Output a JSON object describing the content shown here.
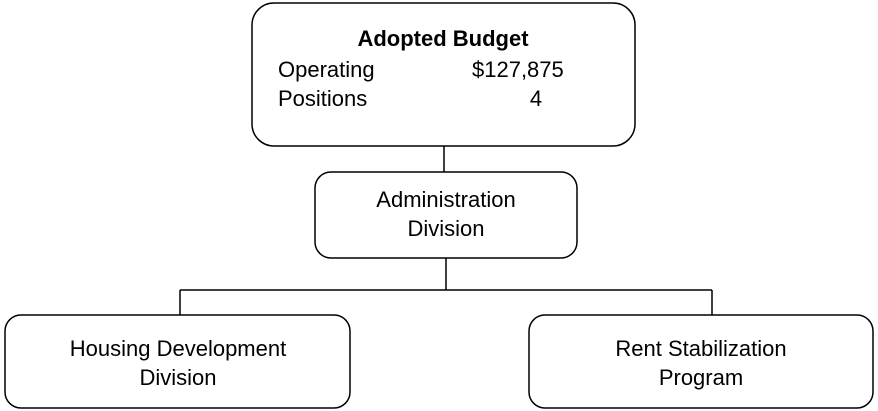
{
  "budget": {
    "title": "Adopted Budget",
    "rows": [
      {
        "label": "Operating",
        "value": "$127,875"
      },
      {
        "label": "Positions",
        "value": "4"
      }
    ]
  },
  "nodes": [
    {
      "label": [
        "Administration",
        "Division"
      ]
    },
    {
      "label": [
        "Housing Development",
        "Division"
      ]
    },
    {
      "label": [
        "Rent Stabilization",
        "Program"
      ]
    }
  ]
}
